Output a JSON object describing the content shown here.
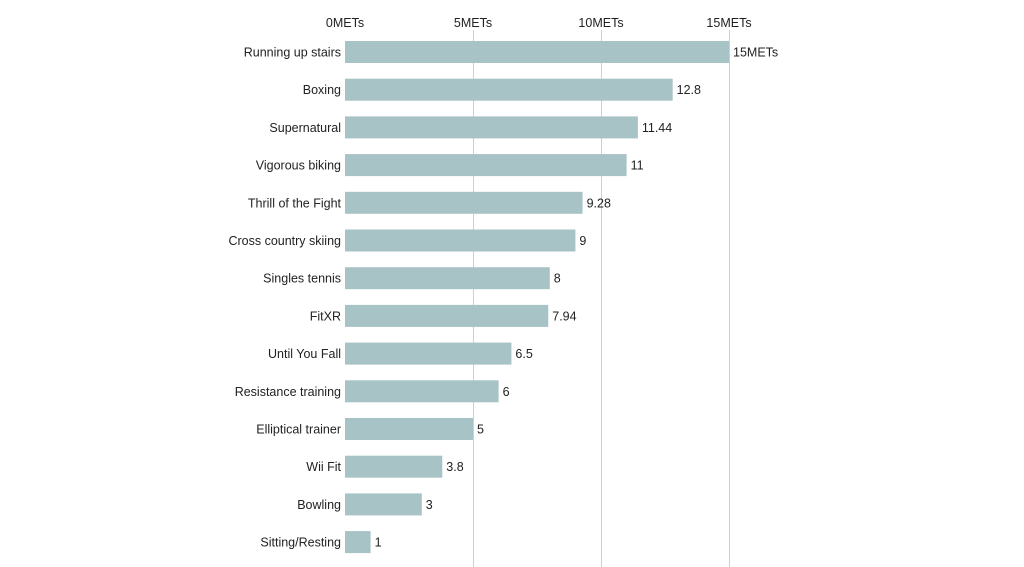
{
  "chart_data": {
    "type": "bar",
    "orientation": "horizontal",
    "title": "",
    "xlabel": "",
    "ylabel": "",
    "xlim": [
      0,
      15
    ],
    "tick_values": [
      0,
      5,
      10,
      15
    ],
    "tick_labels": [
      "0METs",
      "5METs",
      "10METs",
      "15METs"
    ],
    "categories": [
      "Running up stairs",
      "Boxing",
      "Supernatural",
      "Vigorous biking",
      "Thrill of the Fight",
      "Cross country skiing",
      "Singles tennis",
      "FitXR",
      "Until You Fall",
      "Resistance training",
      "Elliptical trainer",
      "Wii Fit",
      "Bowling",
      "Sitting/Resting"
    ],
    "values": [
      15,
      12.8,
      11.44,
      11,
      9.28,
      9,
      8,
      7.94,
      6.5,
      6,
      5,
      3.8,
      3,
      1
    ],
    "value_labels": [
      "15METs",
      "12.8",
      "11.44",
      "11",
      "9.28",
      "9",
      "8",
      "7.94",
      "6.5",
      "6",
      "5",
      "3.8",
      "3",
      "1"
    ],
    "grid": true,
    "colors": {
      "bar": "#a8c3c6",
      "grid": "#cfcfcf",
      "text": "#222222"
    }
  }
}
